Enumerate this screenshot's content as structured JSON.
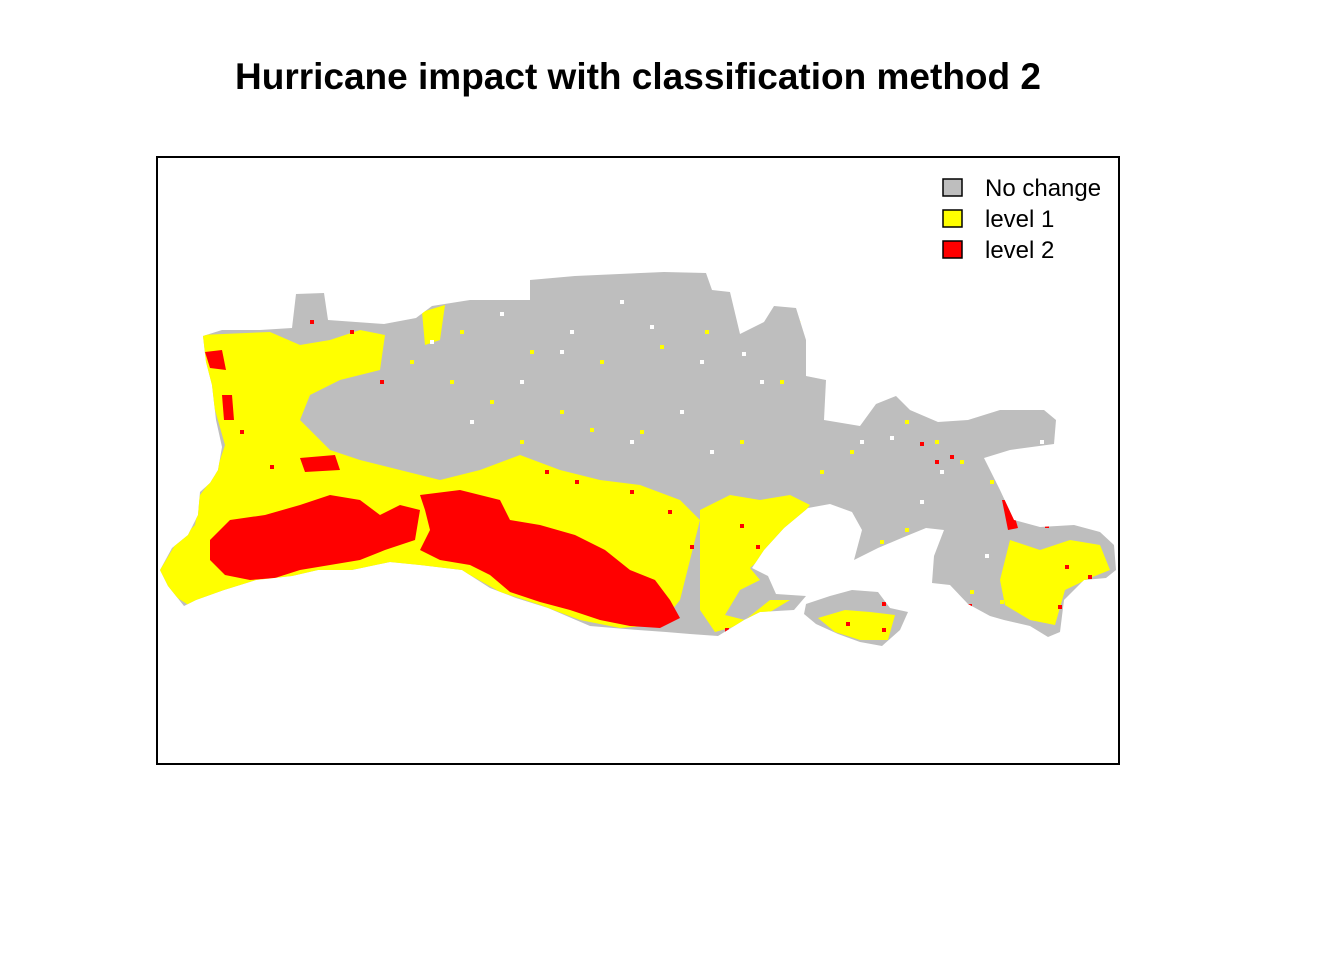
{
  "title": "Hurricane impact with classification method 2",
  "legend": {
    "placement": "top-right",
    "items": [
      {
        "label": "No change",
        "color": "#bebebe"
      },
      {
        "label": "level 1",
        "color": "#ffff00"
      },
      {
        "label": "level 2",
        "color": "#ff0000"
      }
    ]
  },
  "map": {
    "type": "classified-raster",
    "classes": [
      "No change",
      "level 1",
      "level 2"
    ],
    "background": "#ffffff",
    "frame_color": "#000000"
  }
}
